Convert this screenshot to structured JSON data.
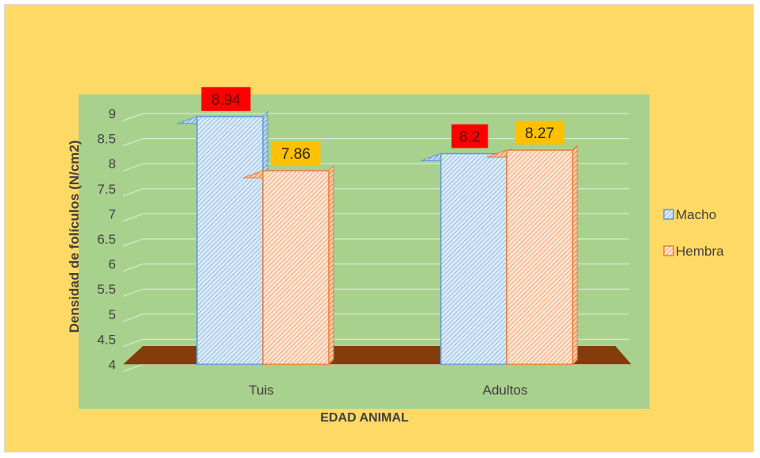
{
  "chart_data": {
    "type": "bar",
    "subtype": "3d-clustered-column",
    "categories": [
      "Tuis",
      "Adultos"
    ],
    "series": [
      {
        "name": "Macho",
        "values": [
          8.94,
          8.2
        ],
        "color": "#5b9bd5",
        "fill": "#deebf7",
        "label_bg": "#ff0000"
      },
      {
        "name": "Hembra",
        "values": [
          7.86,
          8.27
        ],
        "color": "#ed7d31",
        "fill": "#fbe5d6",
        "label_bg": "#ffc000"
      }
    ],
    "data_labels": [
      [
        "8.94",
        "8.2"
      ],
      [
        "7.86",
        "8.27"
      ]
    ],
    "y_ticks": [
      "9",
      "8.5",
      "8",
      "7.5",
      "7",
      "6.5",
      "6",
      "5.5",
      "5",
      "4.5",
      "4"
    ],
    "xlabel": "EDAD ANIMAL",
    "ylabel": "Densidad de folículos (N/cm2)",
    "ylim": [
      4,
      9
    ],
    "grid": true,
    "legend_position": "right",
    "colors": {
      "background": "#ffd966",
      "plot_area": "#a9d18e",
      "floor": "#843c0c",
      "gridline": "#e2efda"
    }
  }
}
